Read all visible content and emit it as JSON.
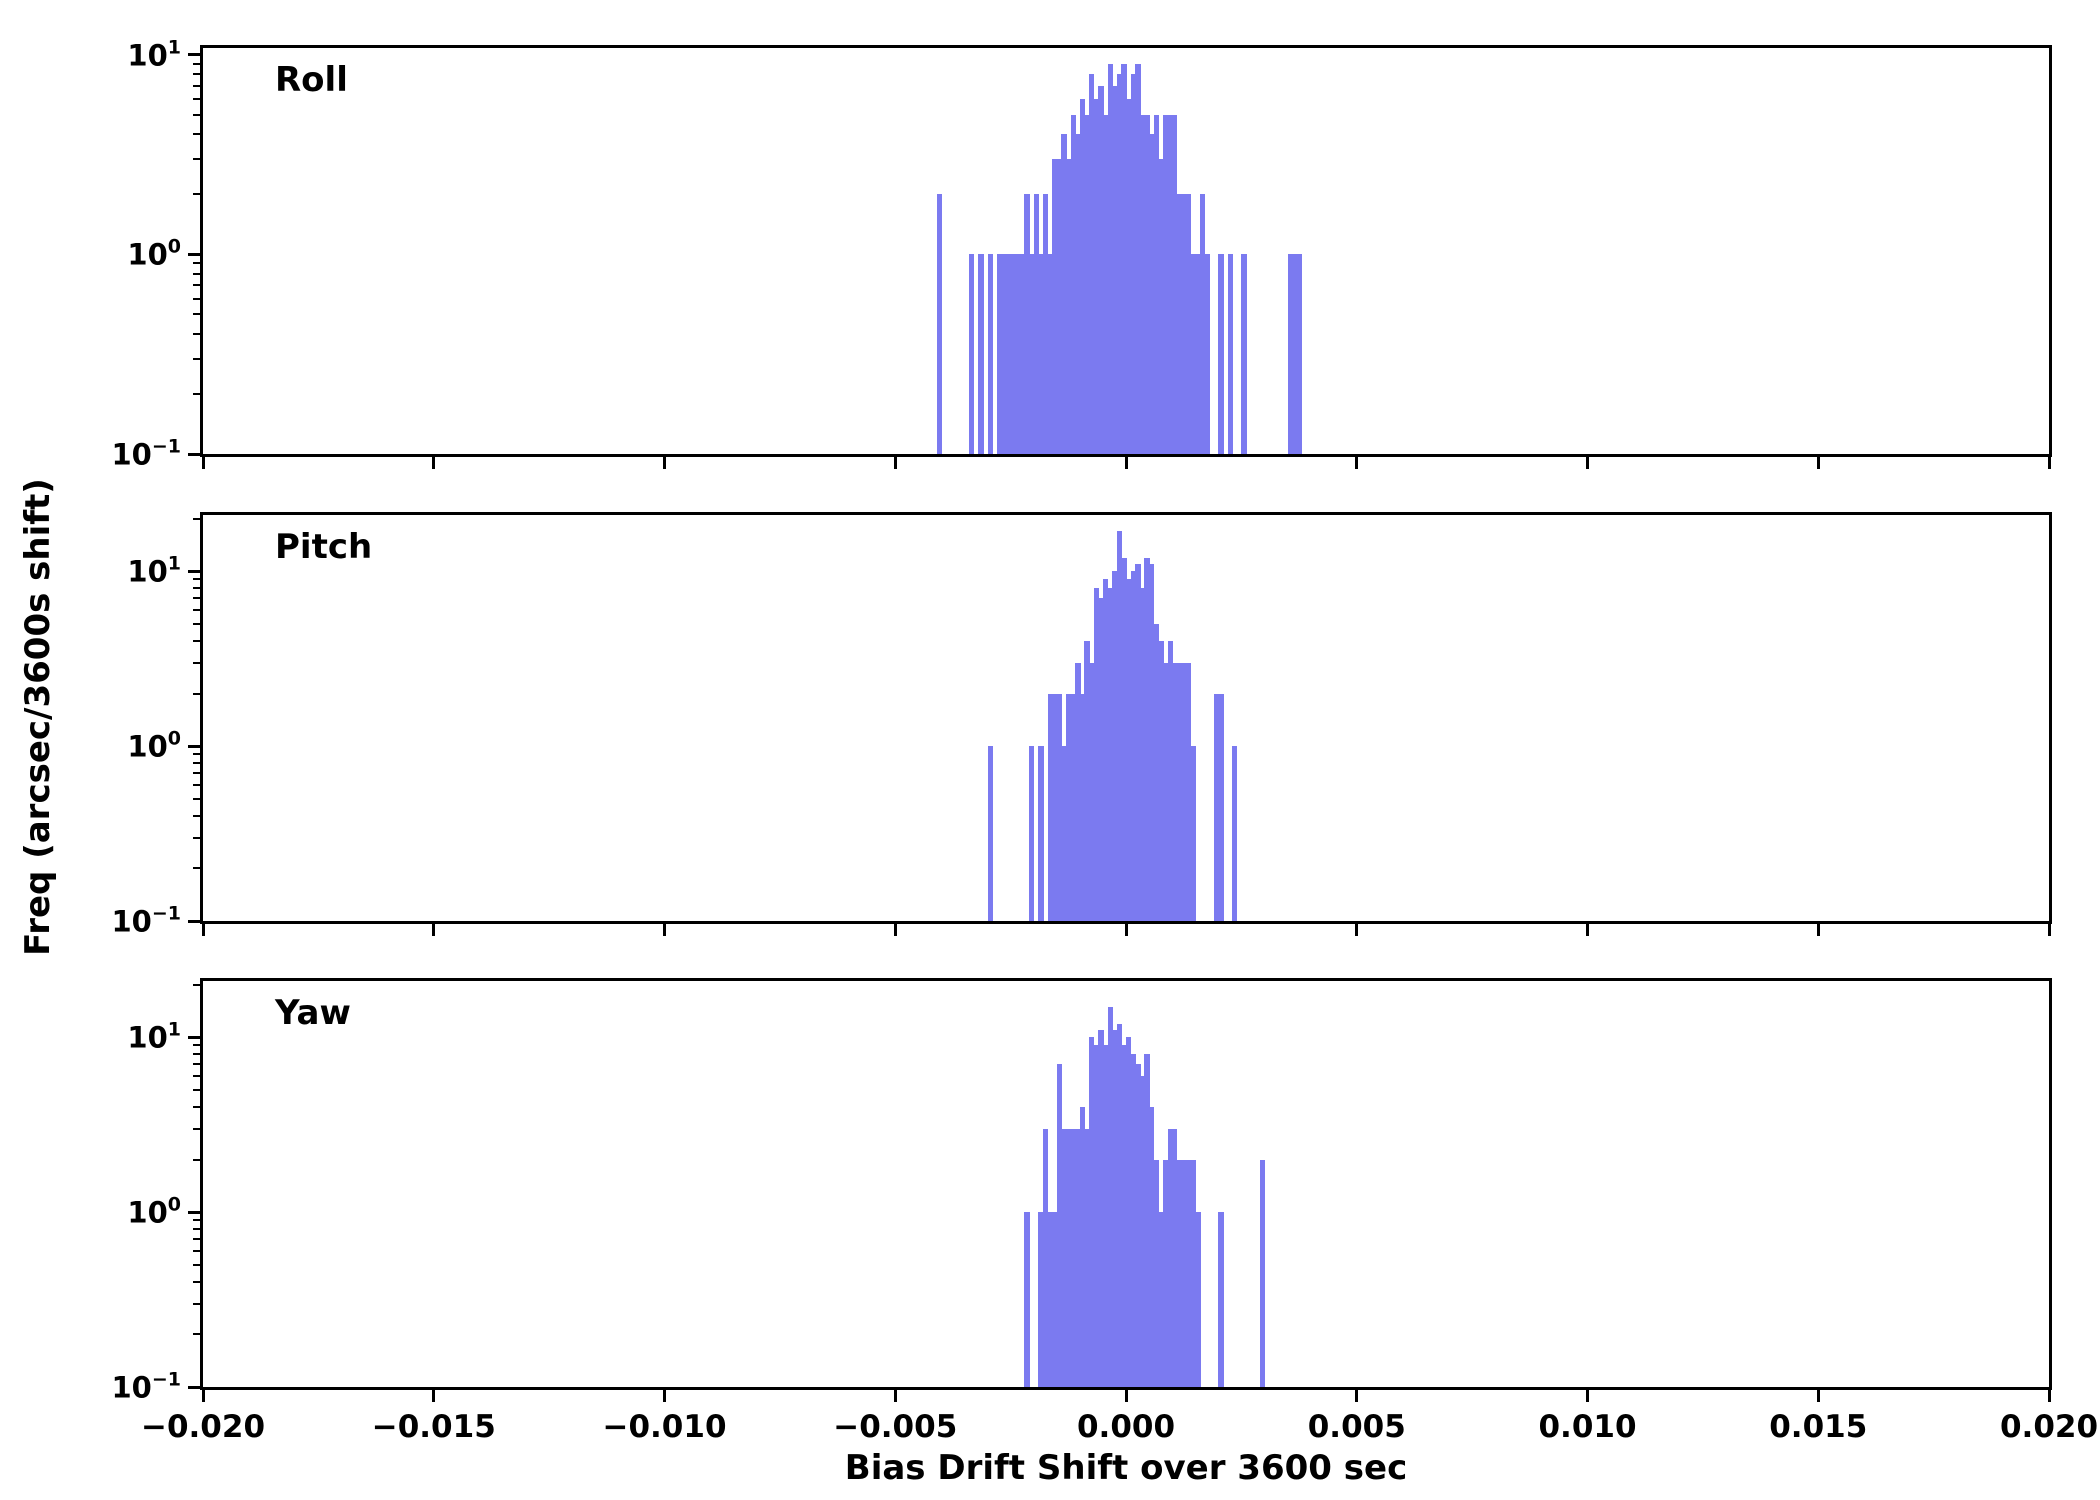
{
  "figure": {
    "xlabel": "Bias Drift Shift over 3600 sec",
    "ylabel": "Freq (arcsec/3600s shift)",
    "bar_color": "#7b7af0",
    "axis_color": "#000000"
  },
  "chart_data": {
    "type": "bar",
    "subtype": "histogram",
    "yscale": "log",
    "grid": false,
    "legend": "none",
    "x_range": [
      -0.02,
      0.02
    ],
    "bin_width": 0.0001,
    "x_ticks": [
      -0.02,
      -0.015,
      -0.01,
      -0.005,
      0.0,
      0.005,
      0.01,
      0.015,
      0.02
    ],
    "x_tick_labels": [
      "−0.020",
      "−0.015",
      "−0.010",
      "−0.005",
      "0.000",
      "0.005",
      "0.010",
      "0.015",
      "0.020"
    ],
    "y_ticks": [
      {
        "value": 10,
        "base": "10",
        "exp": "1"
      },
      {
        "value": 1,
        "base": "10",
        "exp": "0"
      },
      {
        "value": 0.1,
        "base": "10",
        "exp": "−1"
      }
    ],
    "panels": [
      {
        "label": "Roll",
        "ylim": [
          0.1,
          10.8
        ],
        "bars": [
          [
            -0.0041,
            2
          ],
          [
            -0.0034,
            1
          ],
          [
            -0.0032,
            1
          ],
          [
            -0.003,
            1
          ],
          [
            -0.0028,
            1
          ],
          [
            -0.0027,
            1
          ],
          [
            -0.0026,
            1
          ],
          [
            -0.0025,
            1
          ],
          [
            -0.0024,
            1
          ],
          [
            -0.0023,
            1
          ],
          [
            -0.0022,
            2
          ],
          [
            -0.0021,
            1
          ],
          [
            -0.002,
            2
          ],
          [
            -0.0019,
            1
          ],
          [
            -0.0018,
            2
          ],
          [
            -0.0017,
            1
          ],
          [
            -0.0016,
            3
          ],
          [
            -0.0015,
            3
          ],
          [
            -0.0014,
            4
          ],
          [
            -0.0013,
            3
          ],
          [
            -0.0012,
            5
          ],
          [
            -0.0011,
            4
          ],
          [
            -0.001,
            6
          ],
          [
            -0.0009,
            5
          ],
          [
            -0.0008,
            8
          ],
          [
            -0.0007,
            6
          ],
          [
            -0.0006,
            7
          ],
          [
            -0.0005,
            5
          ],
          [
            -0.0004,
            9
          ],
          [
            -0.0003,
            7
          ],
          [
            -0.0002,
            8
          ],
          [
            -0.0001,
            9
          ],
          [
            0.0,
            6
          ],
          [
            0.0001,
            8
          ],
          [
            0.0002,
            9
          ],
          [
            0.0003,
            5
          ],
          [
            0.0004,
            5
          ],
          [
            0.0005,
            4
          ],
          [
            0.0006,
            5
          ],
          [
            0.0007,
            3
          ],
          [
            0.0008,
            5
          ],
          [
            0.0009,
            5
          ],
          [
            0.001,
            5
          ],
          [
            0.0011,
            2
          ],
          [
            0.0012,
            2
          ],
          [
            0.0013,
            2
          ],
          [
            0.0014,
            1
          ],
          [
            0.0015,
            1
          ],
          [
            0.0016,
            2
          ],
          [
            0.0017,
            1
          ],
          [
            0.002,
            1
          ],
          [
            0.0022,
            1
          ],
          [
            0.0025,
            1
          ],
          [
            0.0035,
            1
          ],
          [
            0.0036,
            1
          ],
          [
            0.0037,
            1
          ]
        ]
      },
      {
        "label": "Pitch",
        "ylim": [
          0.1,
          21
        ],
        "bars": [
          [
            -0.003,
            1
          ],
          [
            -0.0021,
            1
          ],
          [
            -0.0019,
            1
          ],
          [
            -0.0017,
            2
          ],
          [
            -0.0016,
            2
          ],
          [
            -0.0015,
            2
          ],
          [
            -0.0014,
            1
          ],
          [
            -0.0013,
            2
          ],
          [
            -0.0012,
            2
          ],
          [
            -0.0011,
            3
          ],
          [
            -0.001,
            2
          ],
          [
            -0.0009,
            4
          ],
          [
            -0.0008,
            3
          ],
          [
            -0.0007,
            8
          ],
          [
            -0.0006,
            7
          ],
          [
            -0.0005,
            9
          ],
          [
            -0.0004,
            8
          ],
          [
            -0.0003,
            10
          ],
          [
            -0.0002,
            17
          ],
          [
            -0.0001,
            12
          ],
          [
            0.0,
            9
          ],
          [
            0.0001,
            10
          ],
          [
            0.0002,
            11
          ],
          [
            0.0003,
            8
          ],
          [
            0.0004,
            12
          ],
          [
            0.0005,
            11
          ],
          [
            0.0006,
            5
          ],
          [
            0.0007,
            4
          ],
          [
            0.0008,
            3
          ],
          [
            0.0009,
            4
          ],
          [
            0.001,
            3
          ],
          [
            0.0011,
            3
          ],
          [
            0.0012,
            3
          ],
          [
            0.0013,
            3
          ],
          [
            0.0014,
            1
          ],
          [
            0.0019,
            2
          ],
          [
            0.002,
            2
          ],
          [
            0.0023,
            1
          ]
        ]
      },
      {
        "label": "Yaw",
        "ylim": [
          0.1,
          21
        ],
        "bars": [
          [
            -0.0022,
            1
          ],
          [
            -0.0019,
            1
          ],
          [
            -0.0018,
            3
          ],
          [
            -0.0017,
            1
          ],
          [
            -0.0016,
            1
          ],
          [
            -0.0015,
            7
          ],
          [
            -0.0014,
            3
          ],
          [
            -0.0013,
            3
          ],
          [
            -0.0012,
            3
          ],
          [
            -0.0011,
            3
          ],
          [
            -0.001,
            4
          ],
          [
            -0.0009,
            3
          ],
          [
            -0.0008,
            10
          ],
          [
            -0.0007,
            9
          ],
          [
            -0.0006,
            11
          ],
          [
            -0.0005,
            9
          ],
          [
            -0.0004,
            15
          ],
          [
            -0.0003,
            11
          ],
          [
            -0.0002,
            12
          ],
          [
            -0.0001,
            9
          ],
          [
            0.0,
            10
          ],
          [
            0.0001,
            8
          ],
          [
            0.0002,
            7
          ],
          [
            0.0003,
            6
          ],
          [
            0.0004,
            8
          ],
          [
            0.0005,
            4
          ],
          [
            0.0006,
            2
          ],
          [
            0.0007,
            1
          ],
          [
            0.0008,
            2
          ],
          [
            0.0009,
            3
          ],
          [
            0.001,
            3
          ],
          [
            0.0011,
            2
          ],
          [
            0.0012,
            2
          ],
          [
            0.0013,
            2
          ],
          [
            0.0014,
            2
          ],
          [
            0.0015,
            1
          ],
          [
            0.002,
            1
          ],
          [
            0.0029,
            2
          ]
        ]
      }
    ]
  }
}
